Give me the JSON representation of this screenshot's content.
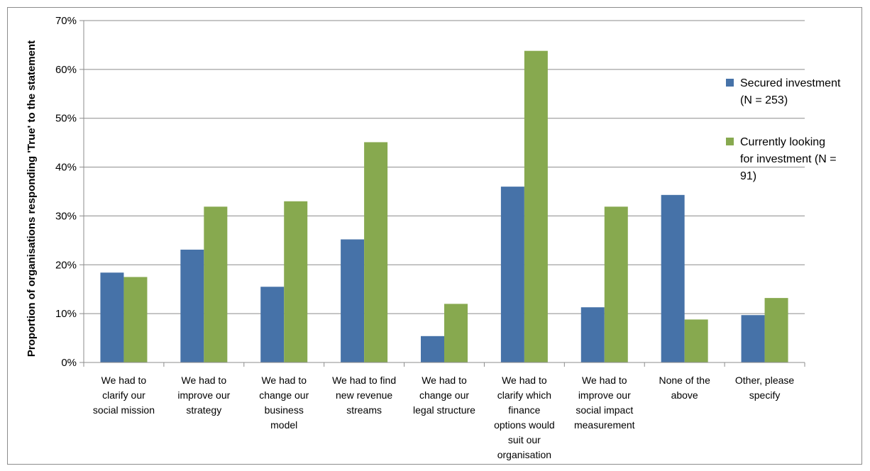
{
  "chart_data": {
    "type": "bar",
    "title": "",
    "xlabel": "",
    "ylabel": "Proportion of organisations responding 'True' to the statement",
    "ylim": [
      0,
      70
    ],
    "yticks": [
      0,
      10,
      20,
      30,
      40,
      50,
      60,
      70
    ],
    "ytick_suffix": "%",
    "grid": true,
    "legend_position": "right",
    "categories": [
      [
        "We had to",
        "clarify our",
        "social mission"
      ],
      [
        "We had to",
        "improve our",
        "strategy"
      ],
      [
        "We had to",
        "change our",
        "business",
        "model"
      ],
      [
        "We had to find",
        "new revenue",
        "streams"
      ],
      [
        "We had to",
        "change our",
        "legal structure"
      ],
      [
        "We had to",
        "clarify which",
        "finance",
        "options would",
        "suit our",
        "organisation"
      ],
      [
        "We had to",
        "improve our",
        "social impact",
        "measurement"
      ],
      [
        "None of the",
        "above"
      ],
      [
        "Other, please",
        "specify"
      ]
    ],
    "series": [
      {
        "name": "Secured investment (N = 253)",
        "legend_lines": [
          "Secured investment",
          "(N = 253)"
        ],
        "color": "#4672a8",
        "values": [
          18.4,
          23.1,
          15.5,
          25.2,
          5.4,
          36.0,
          11.3,
          34.3,
          9.7
        ]
      },
      {
        "name": "Currently looking for investment (N = 91)",
        "legend_lines": [
          "Currently looking",
          "for investment (N =",
          "91)"
        ],
        "color": "#87a94f",
        "values": [
          17.5,
          31.9,
          33.0,
          45.1,
          12.0,
          63.8,
          31.9,
          8.8,
          13.2
        ]
      }
    ]
  }
}
